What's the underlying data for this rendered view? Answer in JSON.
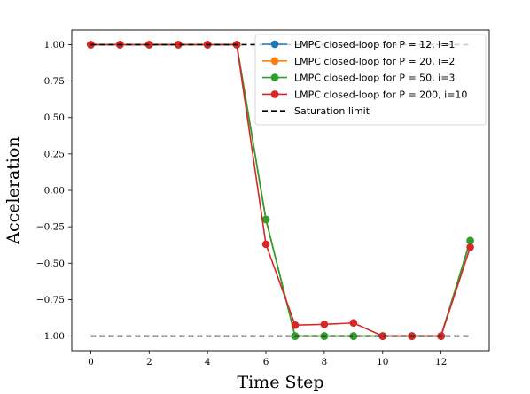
{
  "chart_data": {
    "type": "line",
    "xlabel": "Time Step",
    "ylabel": "Acceleration",
    "xlim": [
      -0.65,
      13.65
    ],
    "ylim": [
      -1.1,
      1.1
    ],
    "xticks": [
      0,
      2,
      4,
      6,
      8,
      10,
      12
    ],
    "xtick_labels": [
      "0",
      "2",
      "4",
      "6",
      "8",
      "10",
      "12"
    ],
    "yticks": [
      1.0,
      0.75,
      0.5,
      0.25,
      0.0,
      -0.25,
      -0.5,
      -0.75,
      -1.0
    ],
    "ytick_labels": [
      "1.00",
      "0.75",
      "0.50",
      "0.25",
      "0.00",
      "−0.25",
      "−0.50",
      "−0.75",
      "−1.00"
    ],
    "grid": false,
    "legend_position": "top-right",
    "series": [
      {
        "name": "LMPC closed-loop for P = 12, i=1",
        "color": "#1f77b4",
        "style": "solid-marker",
        "x": [
          0,
          1,
          2,
          3,
          4,
          5,
          6,
          7,
          8,
          9,
          10,
          11,
          12,
          13
        ],
        "y": [
          1.0,
          1.0,
          1.0,
          1.0,
          1.0,
          1.0,
          -0.2,
          -1.0,
          -1.0,
          -1.0,
          -1.0,
          -1.0,
          -1.0,
          -0.345
        ]
      },
      {
        "name": "LMPC closed-loop for P = 20, i=2",
        "color": "#ff7f0e",
        "style": "solid-marker",
        "x": [
          0,
          1,
          2,
          3,
          4,
          5,
          6,
          7,
          8,
          9,
          10,
          11,
          12,
          13
        ],
        "y": [
          1.0,
          1.0,
          1.0,
          1.0,
          1.0,
          1.0,
          -0.2,
          -1.0,
          -1.0,
          -1.0,
          -1.0,
          -1.0,
          -1.0,
          -0.345
        ]
      },
      {
        "name": "LMPC closed-loop for P = 50, i=3",
        "color": "#2ca02c",
        "style": "solid-marker",
        "x": [
          0,
          1,
          2,
          3,
          4,
          5,
          6,
          7,
          8,
          9,
          10,
          11,
          12,
          13
        ],
        "y": [
          1.0,
          1.0,
          1.0,
          1.0,
          1.0,
          1.0,
          -0.2,
          -1.0,
          -1.0,
          -1.0,
          -1.0,
          -1.0,
          -1.0,
          -0.345
        ]
      },
      {
        "name": "LMPC closed-loop for P = 200, i=10",
        "color": "#d62728",
        "style": "solid-marker",
        "x": [
          0,
          1,
          2,
          3,
          4,
          5,
          6,
          7,
          8,
          9,
          10,
          11,
          12,
          13
        ],
        "y": [
          1.0,
          1.0,
          1.0,
          1.0,
          1.0,
          1.0,
          -0.37,
          -0.925,
          -0.92,
          -0.91,
          -1.0,
          -1.0,
          -1.0,
          -0.39
        ]
      },
      {
        "name": "Saturation limit",
        "color": "#000000",
        "style": "dashed",
        "x": [
          0,
          13
        ],
        "y": [
          1.0,
          1.0
        ],
        "y_lower": [
          -1.0,
          -1.0
        ]
      }
    ]
  }
}
